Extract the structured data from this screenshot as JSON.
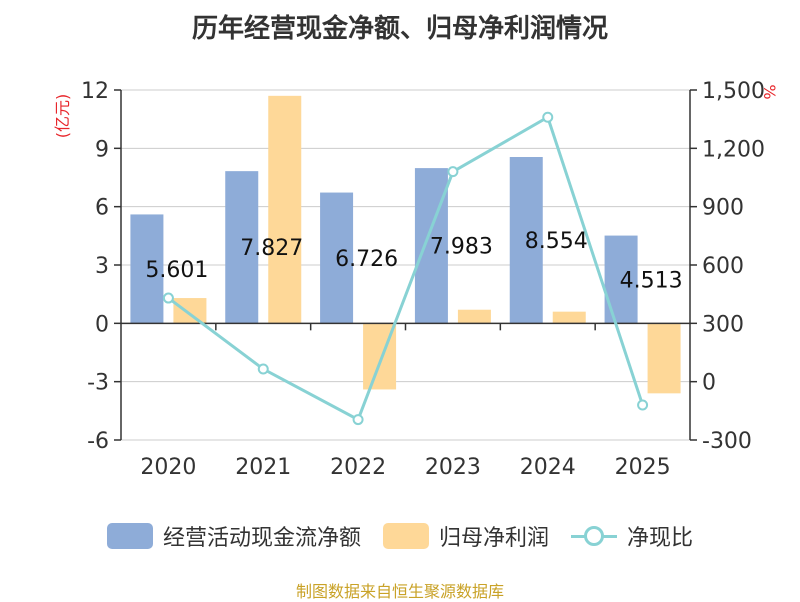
{
  "title": "历年经营现金净额、归母净利润情况",
  "source": "制图数据来自恒生聚源数据库",
  "colors": {
    "bar_cash": "#8eacd8",
    "bar_profit": "#fed898",
    "line_ratio": "#88d2d4",
    "axis_label": "#e8262b",
    "source": "#c9a227",
    "grid": "#cccccc",
    "text": "#333333"
  },
  "legend": {
    "cash": "经营活动现金流净额",
    "profit": "归母净利润",
    "ratio": "净现比"
  },
  "chart_data": {
    "type": "bar",
    "title": "历年经营现金净额、归母净利润情况",
    "categories": [
      "2020",
      "2021",
      "2022",
      "2023",
      "2024",
      "2025"
    ],
    "series": [
      {
        "name": "经营活动现金流净额",
        "type": "bar",
        "axis": "left",
        "values": [
          5.601,
          7.827,
          6.726,
          7.983,
          8.554,
          4.513
        ],
        "data_labels": [
          "5.601",
          "7.827",
          "6.726",
          "7.983",
          "8.554",
          "4.513"
        ]
      },
      {
        "name": "归母净利润",
        "type": "bar",
        "axis": "left",
        "values": [
          1.3,
          11.7,
          -3.4,
          0.7,
          0.6,
          -3.6
        ]
      },
      {
        "name": "净现比",
        "type": "line",
        "axis": "right",
        "values": [
          430,
          65,
          -195,
          1080,
          1360,
          -120
        ]
      }
    ],
    "y_left": {
      "label": "(亿元)",
      "min": -6,
      "max": 12,
      "ticks": [
        -6,
        -3,
        0,
        3,
        6,
        9,
        12
      ],
      "tick_labels": [
        "-6",
        "-3",
        "0",
        "3",
        "6",
        "9",
        "12"
      ]
    },
    "y_right": {
      "label": "%",
      "min": -300,
      "max": 1500,
      "ticks": [
        -300,
        0,
        300,
        600,
        900,
        1200,
        1500
      ],
      "tick_labels": [
        "-300",
        "0",
        "300",
        "600",
        "900",
        "1,200",
        "1,500"
      ]
    },
    "grid": true,
    "legend_position": "bottom"
  }
}
